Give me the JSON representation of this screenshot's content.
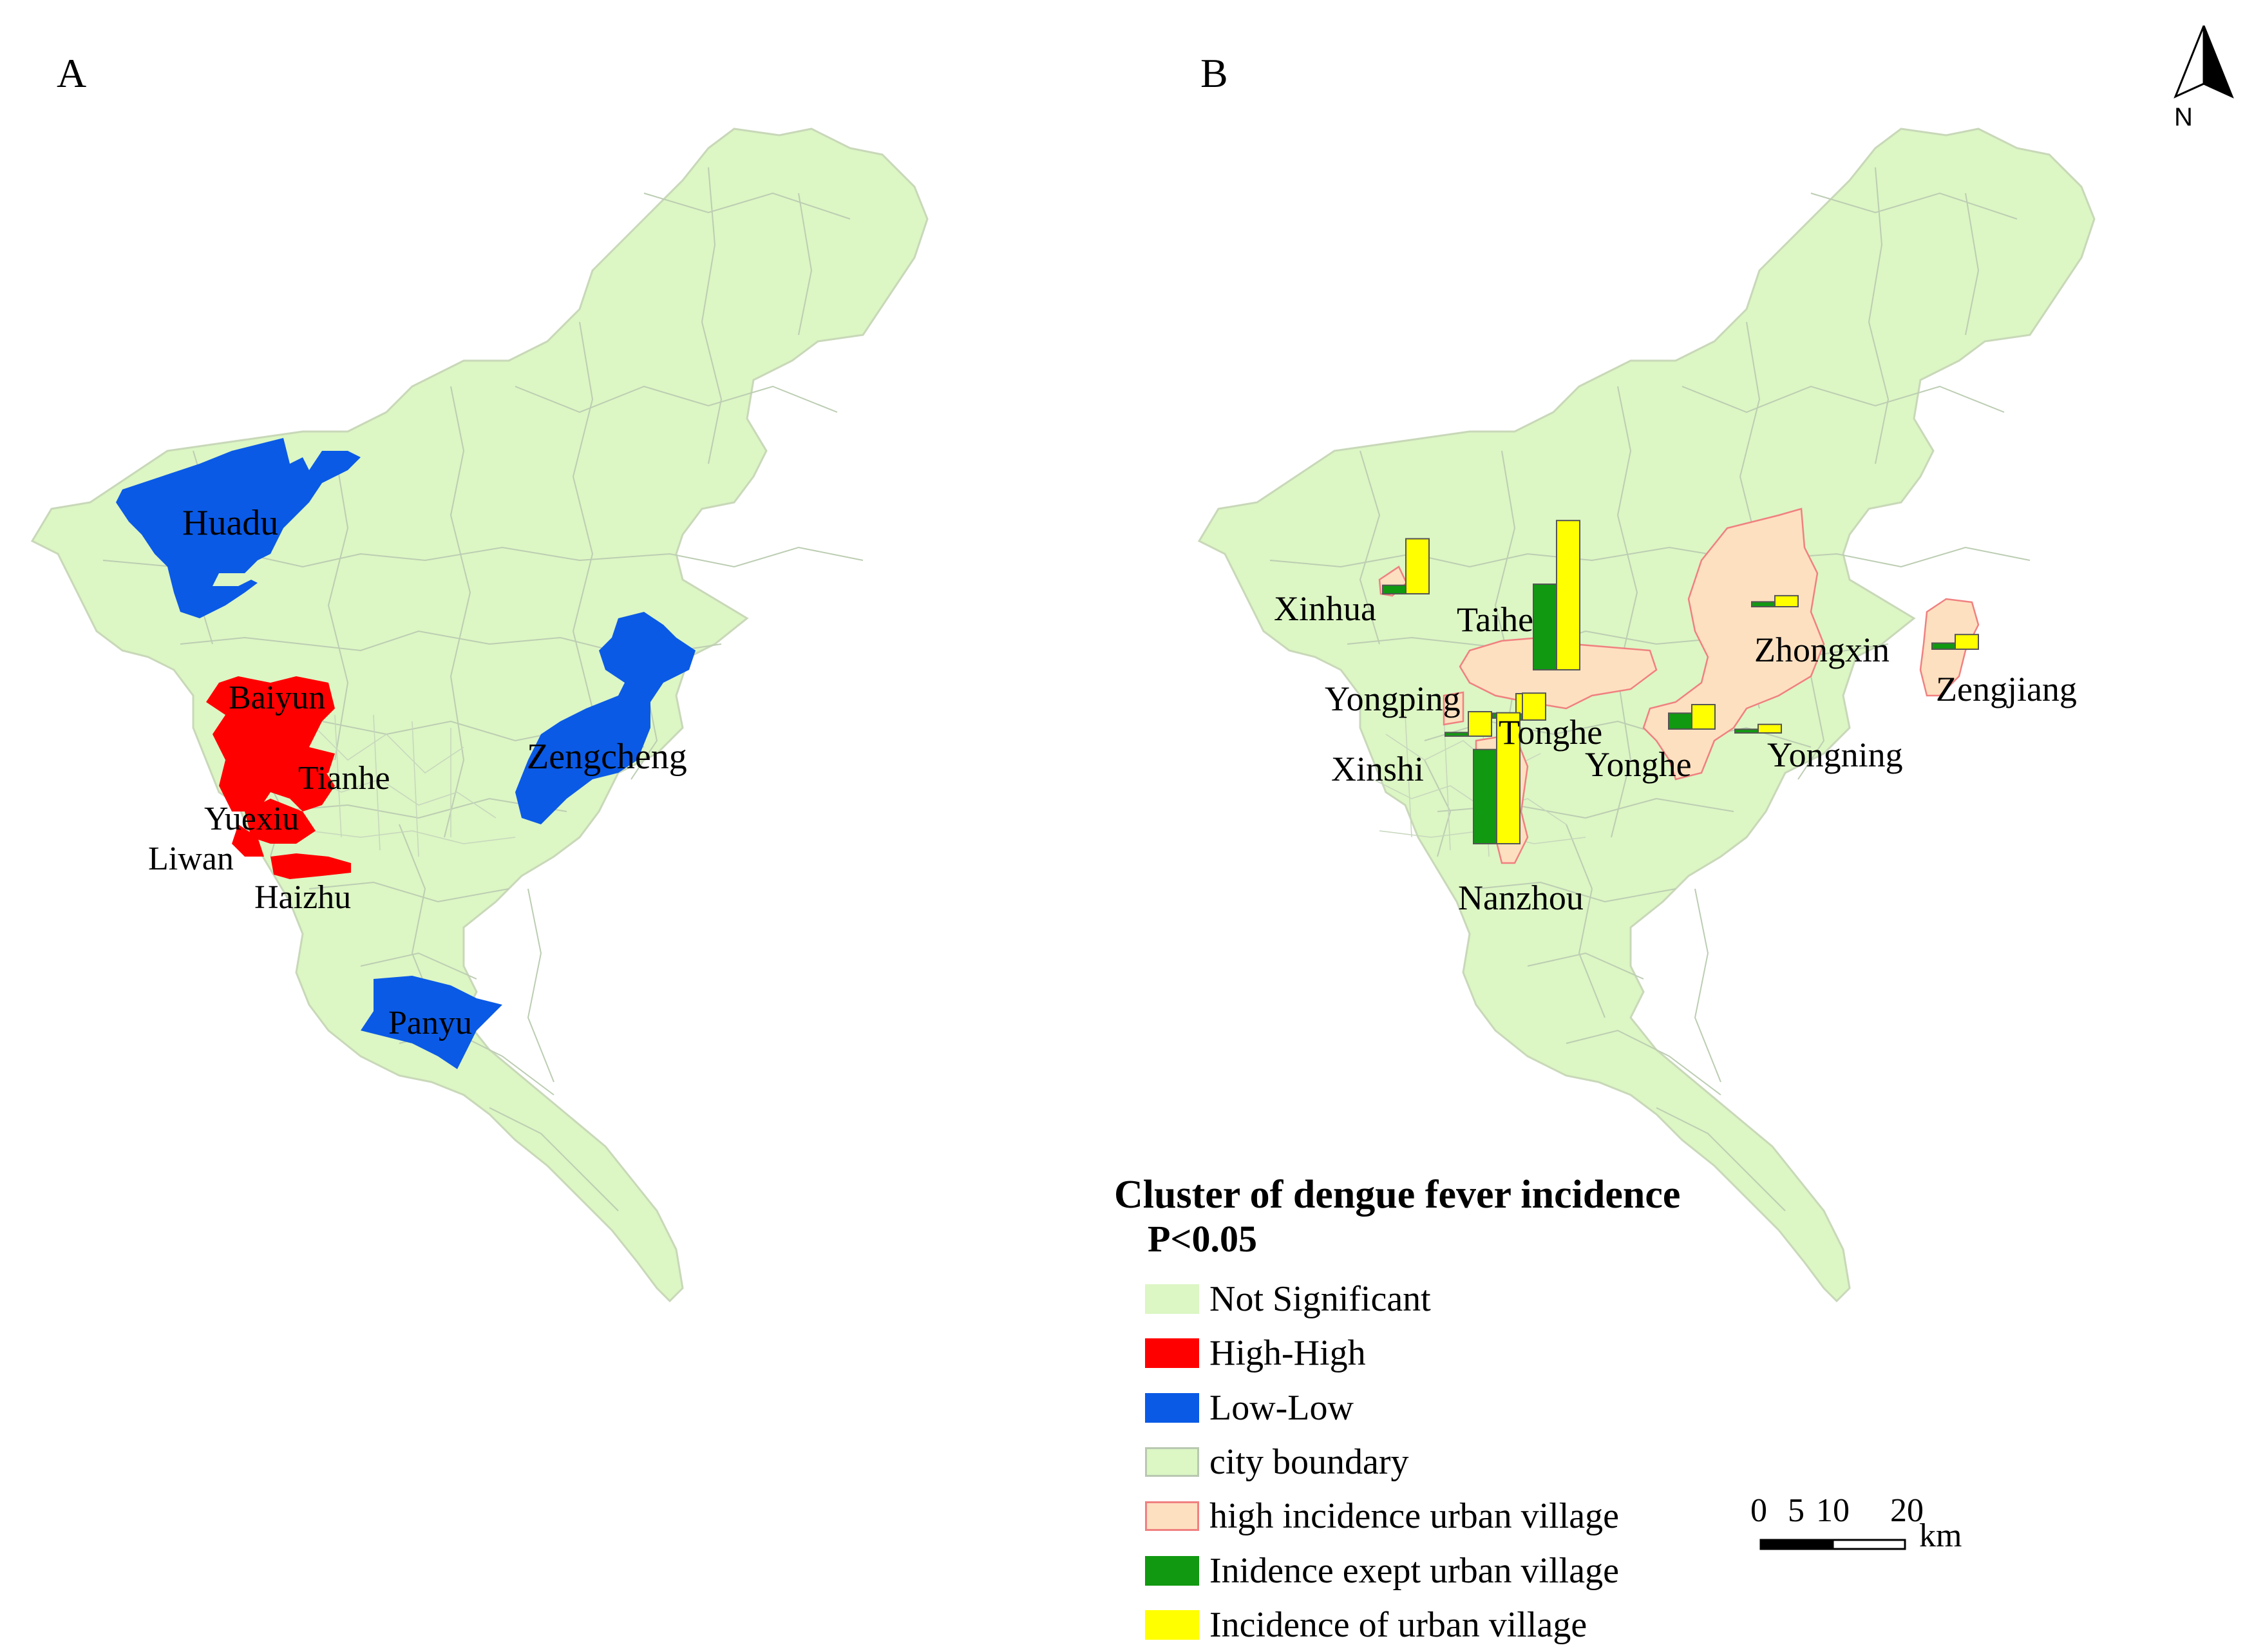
{
  "panels": {
    "a_label": "A",
    "b_label": "B"
  },
  "north_arrow": {
    "label": "N"
  },
  "colors": {
    "not_significant": "#dcf6c4",
    "city_boundary_stroke": "#b9c8b0",
    "high_high": "#ff0000",
    "low_low": "#0a5ae6",
    "urban_village_fill": "#fde0c0",
    "urban_village_stroke": "#f08080",
    "incidence_except_urban_village": "#119911",
    "incidence_urban_village": "#ffff00"
  },
  "map_a": {
    "labels": {
      "huadu": "Huadu",
      "baiyun": "Baiyun",
      "tianhe": "Tianhe",
      "yuexiu": "Yuexiu",
      "liwan": "Liwan",
      "haizhu": "Haizhu",
      "zengcheng": "Zengcheng",
      "panyu": "Panyu"
    },
    "high_high_districts": [
      "Baiyun",
      "Tianhe",
      "Yuexiu",
      "Liwan",
      "Haizhu"
    ],
    "low_low_districts": [
      "Huadu",
      "Zengcheng",
      "Panyu"
    ]
  },
  "map_b": {
    "labels": {
      "xinhua": "Xinhua",
      "taihe": "Taihe",
      "zhongxin": "Zhongxin",
      "zengjiang": "Zengjiang",
      "yongping": "Yongping",
      "tonghe": "Tonghe",
      "xinshi": "Xinshi",
      "yonghe": "Yonghe",
      "yongning": "Yongning",
      "nanzhou": "Nanzhou"
    },
    "bar_charts": [
      {
        "town": "Xinhua",
        "except_urban_village": 0.07,
        "urban_village": 0.45
      },
      {
        "town": "Taihe",
        "except_urban_village": 0.7,
        "urban_village": 1.22
      },
      {
        "town": "Zhongxin",
        "except_urban_village": 0.04,
        "urban_village": 0.09
      },
      {
        "town": "Zengjiang",
        "except_urban_village": 0.05,
        "urban_village": 0.12
      },
      {
        "town": "Yongping",
        "except_urban_village": 0.03,
        "urban_village": 0.2
      },
      {
        "town": "Xinshi",
        "except_urban_village": 0.04,
        "urban_village": 0.2
      },
      {
        "town": "Tonghe",
        "except_urban_village": 0.05,
        "urban_village": 0.22
      },
      {
        "town": "Yonghe",
        "except_urban_village": 0.13,
        "urban_village": 0.2
      },
      {
        "town": "Yongning",
        "except_urban_village": 0.03,
        "urban_village": 0.07
      },
      {
        "town": "Nanzhou",
        "except_urban_village": 0.77,
        "urban_village": 1.07
      }
    ]
  },
  "legend": {
    "title": "Cluster of dengue fever incidence",
    "subtitle": "P<0.05",
    "items": [
      {
        "label": "Not Significant",
        "fill": "#dcf6c4",
        "stroke": "#dcf6c4"
      },
      {
        "label": "High-High",
        "fill": "#ff0000",
        "stroke": "#ff0000"
      },
      {
        "label": "Low-Low",
        "fill": "#0a5ae6",
        "stroke": "#0a5ae6"
      },
      {
        "label": "city boundary",
        "fill": "#dcf6c4",
        "stroke": "#b9c8b0"
      },
      {
        "label": "high incidence urban village",
        "fill": "#fde0c0",
        "stroke": "#f08080"
      },
      {
        "label": "Inidence exept urban village",
        "fill": "#119911",
        "stroke": "#119911"
      },
      {
        "label": "Incidence of urban village",
        "fill": "#ffff00",
        "stroke": "#ffff00"
      }
    ]
  },
  "scale_bar": {
    "ticks": [
      "0",
      "5",
      "10",
      "20"
    ],
    "unit": "km"
  }
}
